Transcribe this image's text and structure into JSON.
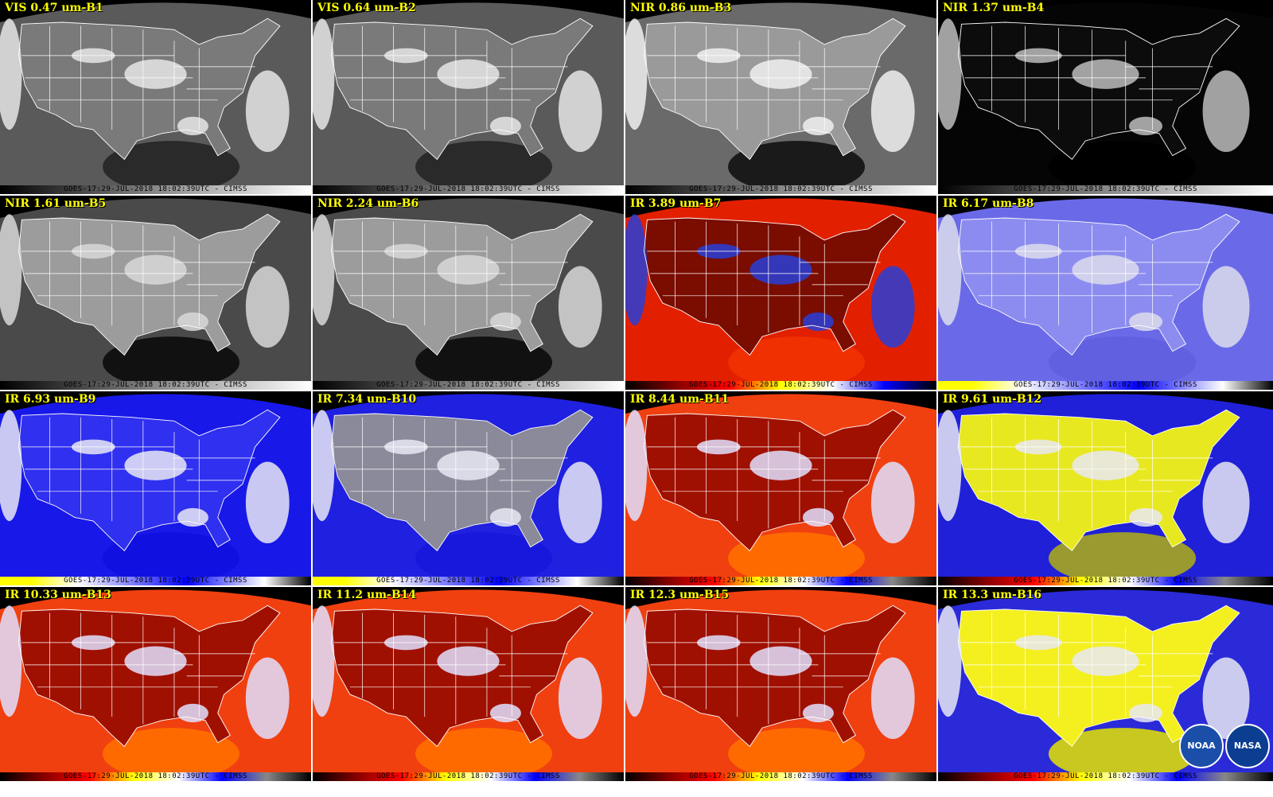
{
  "figure": {
    "footer_stamp": "GOES-17:29-JUL-2018 18:02:39UTC - CIMSS",
    "logos": [
      "NOAA",
      "NASA"
    ],
    "panels": [
      {
        "label": "VIS 0.47 um-B1",
        "scheme": "vis"
      },
      {
        "label": "VIS 0.64 um-B2",
        "scheme": "vis"
      },
      {
        "label": "NIR 0.86 um-B3",
        "scheme": "nir86"
      },
      {
        "label": "NIR 1.37 um-B4",
        "scheme": "dark"
      },
      {
        "label": "NIR 1.61 um-B5",
        "scheme": "nir16"
      },
      {
        "label": "NIR 2.24 um-B6",
        "scheme": "nir16"
      },
      {
        "label": "IR 3.89 um-B7",
        "scheme": "ir7"
      },
      {
        "label": "IR 6.17 um-B8",
        "scheme": "wv8"
      },
      {
        "label": "IR 6.93 um-B9",
        "scheme": "wv9"
      },
      {
        "label": "IR 7.34 um-B10",
        "scheme": "wv10"
      },
      {
        "label": "IR 8.44 um-B11",
        "scheme": "irwin"
      },
      {
        "label": "IR 9.61 um-B12",
        "scheme": "oz"
      },
      {
        "label": "IR 10.33 um-B13",
        "scheme": "irwin"
      },
      {
        "label": "IR 11.2 um-B14",
        "scheme": "irwin"
      },
      {
        "label": "IR 12.3 um-B15",
        "scheme": "irwin"
      },
      {
        "label": "IR 13.3 um-B16",
        "scheme": "co2"
      }
    ],
    "colors": {
      "label_text": "#ffff00",
      "state_lines": "#ffffff"
    }
  }
}
